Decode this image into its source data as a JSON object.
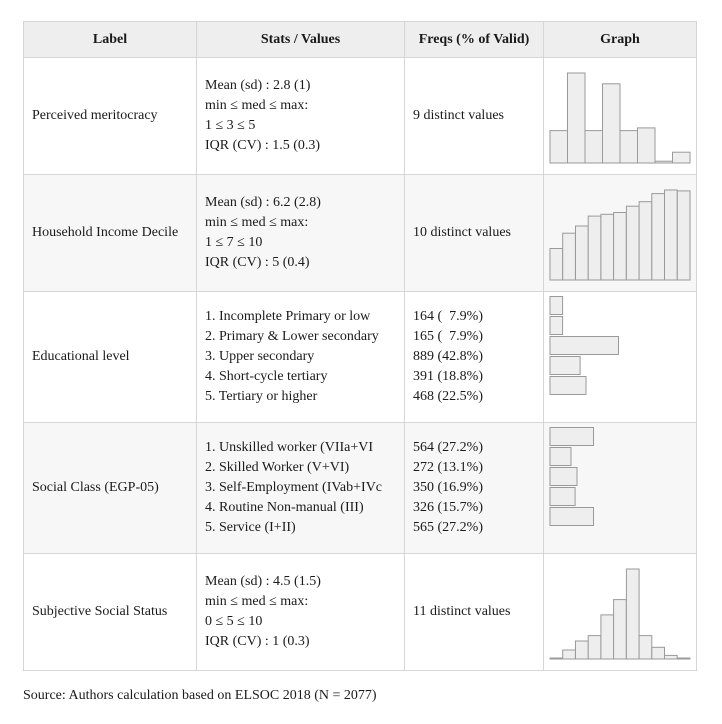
{
  "headers": {
    "label": "Label",
    "stats": "Stats / Values",
    "freqs": "Freqs (% of Valid)",
    "graph": "Graph"
  },
  "rows": [
    {
      "label": "Perceived meritocracy",
      "stats": [
        "Mean (sd) : 2.8 (1)",
        "min ≤ med ≤ max:",
        "1 ≤ 3 ≤ 5",
        "IQR (CV) : 1.5 (0.3)"
      ],
      "freqs": [
        "9 distinct values"
      ],
      "graph": {
        "type": "histogram",
        "values": [
          0.36,
          1.0,
          0.36,
          0.88,
          0.36,
          0.39,
          0.02,
          0.12
        ]
      }
    },
    {
      "label": "Household Income Decile",
      "stats": [
        "Mean (sd) : 6.2 (2.8)",
        "min ≤ med ≤ max:",
        "1 ≤ 7 ≤ 10",
        "IQR (CV) : 5 (0.4)"
      ],
      "freqs": [
        "10 distinct values"
      ],
      "graph": {
        "type": "histogram",
        "values": [
          0.35,
          0.52,
          0.6,
          0.71,
          0.73,
          0.75,
          0.82,
          0.87,
          0.96,
          1.0,
          0.99
        ]
      }
    },
    {
      "label": "Educational level",
      "stats": [
        "1. Incomplete Primary or low",
        "2. Primary & Lower secondary",
        "3. Upper secondary",
        "4. Short-cycle tertiary",
        "5. Tertiary or higher"
      ],
      "freqs": [
        "164 (  7.9%)",
        "165 (  7.9%)",
        "889 (42.8%)",
        "391 (18.8%)",
        "468 (22.5%)"
      ],
      "graph": {
        "type": "hbar",
        "values": [
          7.9,
          7.9,
          42.8,
          18.8,
          22.5
        ]
      }
    },
    {
      "label": "Social Class (EGP-05)",
      "stats": [
        "1. Unskilled worker (VIIa+VI",
        "2. Skilled Worker (V+VI)",
        "3. Self-Employment (IVab+IVc",
        "4. Routine Non-manual (III)",
        "5. Service (I+II)"
      ],
      "freqs": [
        "564 (27.2%)",
        "272 (13.1%)",
        "350 (16.9%)",
        "326 (15.7%)",
        "565 (27.2%)"
      ],
      "graph": {
        "type": "hbar",
        "values": [
          27.2,
          13.1,
          16.9,
          15.7,
          27.2
        ]
      }
    },
    {
      "label": "Subjective Social Status",
      "stats": [
        "Mean (sd) : 4.5 (1.5)",
        "min ≤ med ≤ max:",
        "0 ≤ 5 ≤ 10",
        "IQR (CV) : 1 (0.3)"
      ],
      "freqs": [
        "11 distinct values"
      ],
      "graph": {
        "type": "histogram",
        "values": [
          0.01,
          0.1,
          0.2,
          0.26,
          0.49,
          0.66,
          1.0,
          0.26,
          0.13,
          0.04,
          0.01
        ]
      }
    }
  ],
  "source": "Source: Authors calculation based on ELSOC 2018 (N = 2077)",
  "colors": {
    "bar_fill": "#eeeeee",
    "bar_stroke": "#9a9a9a",
    "grid": "#d6d6d6"
  }
}
